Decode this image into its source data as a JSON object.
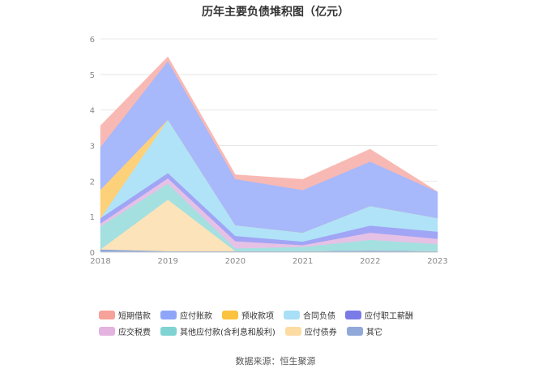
{
  "chart_data": {
    "type": "area",
    "stacked": true,
    "title": "历年主要负债堆积图（亿元）",
    "categories": [
      "2018",
      "2019",
      "2020",
      "2021",
      "2022",
      "2023"
    ],
    "ylim": [
      0,
      6
    ],
    "yticks": [
      "0",
      "1",
      "2",
      "3",
      "4",
      "5",
      "6"
    ],
    "grid": true,
    "legend_position": "bottom",
    "series": [
      {
        "name": "其它",
        "color": "#8fa8d8",
        "values": [
          0.08,
          0.03,
          0.03,
          0.03,
          0.05,
          0.03
        ]
      },
      {
        "name": "应付债券",
        "color": "#fde3b9",
        "values": [
          0.0,
          1.45,
          0.0,
          0.0,
          0.0,
          0.0
        ]
      },
      {
        "name": "其他应付款(含利息和股利)",
        "color": "#a5e0e0",
        "values": [
          0.65,
          0.45,
          0.08,
          0.12,
          0.3,
          0.2
        ]
      },
      {
        "name": "应交税费",
        "color": "#e6c1e6",
        "values": [
          0.08,
          0.15,
          0.2,
          0.05,
          0.2,
          0.15
        ]
      },
      {
        "name": "应付职工薪酬",
        "color": "#a1a5f5",
        "values": [
          0.15,
          0.15,
          0.15,
          0.1,
          0.2,
          0.2
        ]
      },
      {
        "name": "合同负债",
        "color": "#b0e3f8",
        "values": [
          0.0,
          1.5,
          0.3,
          0.25,
          0.55,
          0.38
        ]
      },
      {
        "name": "预收款项",
        "color": "#fdd17a",
        "values": [
          0.8,
          0.0,
          0.0,
          0.0,
          0.0,
          0.0
        ]
      },
      {
        "name": "应付账款",
        "color": "#a7b8fb",
        "values": [
          1.2,
          1.65,
          1.3,
          1.2,
          1.25,
          0.74
        ]
      },
      {
        "name": "短期借款",
        "color": "#f8b9b4",
        "values": [
          0.6,
          0.12,
          0.12,
          0.3,
          0.35,
          0.0
        ]
      }
    ]
  },
  "legend": [
    {
      "label": "短期借款",
      "color": "#f6a19a"
    },
    {
      "label": "应付账款",
      "color": "#8fa6f8"
    },
    {
      "label": "预收款项",
      "color": "#fbc23d"
    },
    {
      "label": "合同负债",
      "color": "#a9dff7"
    },
    {
      "label": "应付职工薪酬",
      "color": "#7b7be8"
    },
    {
      "label": "应交税费",
      "color": "#e4b3df"
    },
    {
      "label": "其他应付款(含利息和股利)",
      "color": "#7fd3d3"
    },
    {
      "label": "应付债券",
      "color": "#fddca4"
    },
    {
      "label": "其它",
      "color": "#90a9d8"
    }
  ],
  "source": "数据来源：恒生聚源"
}
